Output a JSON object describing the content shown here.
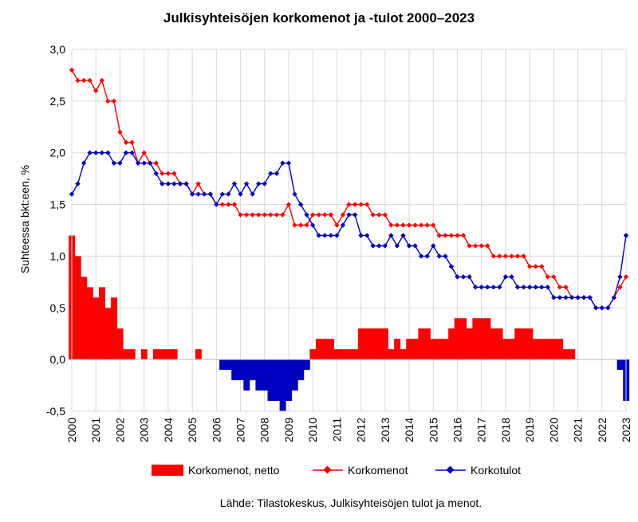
{
  "chart_data": {
    "type": "bar+line",
    "title": "Julkisyhteisöjen korkomenot ja -tulot 2000–2023",
    "ylabel": "Suhteessa bkt:een, %",
    "xlabel": "",
    "ylim": [
      -0.5,
      3.0
    ],
    "xlim": [
      2000,
      2023
    ],
    "y_ticks": [
      "3,0",
      "2,5",
      "2,0",
      "1,5",
      "1,0",
      "0,5",
      "0,0",
      "-0,5"
    ],
    "y_tick_values": [
      3.0,
      2.5,
      2.0,
      1.5,
      1.0,
      0.5,
      0.0,
      -0.5
    ],
    "x_ticks": [
      "2000",
      "2001",
      "2002",
      "2003",
      "2004",
      "2005",
      "2006",
      "2007",
      "2008",
      "2009",
      "2010",
      "2011",
      "2012",
      "2013",
      "2014",
      "2015",
      "2016",
      "2017",
      "2018",
      "2019",
      "2020",
      "2021",
      "2022",
      "2023"
    ],
    "x_tick_values": [
      2000,
      2001,
      2002,
      2003,
      2004,
      2005,
      2006,
      2007,
      2008,
      2009,
      2010,
      2011,
      2012,
      2013,
      2014,
      2015,
      2016,
      2017,
      2018,
      2019,
      2020,
      2021,
      2022,
      2023
    ],
    "grid": true,
    "legend_position": "bottom",
    "x_step": 0.25,
    "series": [
      {
        "name": "Korkomenot, netto",
        "type": "bar",
        "color": "#ff0000",
        "values": [
          [
            2000.0,
            1.2
          ],
          [
            2000.25,
            1.0
          ],
          [
            2000.5,
            0.8
          ],
          [
            2000.75,
            0.7
          ],
          [
            2001.0,
            0.6
          ],
          [
            2001.25,
            0.7
          ],
          [
            2001.5,
            0.5
          ],
          [
            2001.75,
            0.6
          ],
          [
            2002.0,
            0.3
          ],
          [
            2002.25,
            0.1
          ],
          [
            2002.5,
            0.1
          ],
          [
            2002.75,
            0.0
          ],
          [
            2003.0,
            0.1
          ],
          [
            2003.25,
            0.0
          ],
          [
            2003.5,
            0.1
          ],
          [
            2003.75,
            0.1
          ],
          [
            2004.0,
            0.1
          ],
          [
            2004.25,
            0.1
          ],
          [
            2004.5,
            0.0
          ],
          [
            2004.75,
            0.0
          ],
          [
            2005.0,
            0.0
          ],
          [
            2005.25,
            0.1
          ],
          [
            2005.5,
            0.0
          ],
          [
            2005.75,
            0.0
          ],
          [
            2006.0,
            0.0
          ],
          [
            2006.25,
            -0.1
          ],
          [
            2006.5,
            -0.1
          ],
          [
            2006.75,
            -0.2
          ],
          [
            2007.0,
            -0.2
          ],
          [
            2007.25,
            -0.3
          ],
          [
            2007.5,
            -0.2
          ],
          [
            2007.75,
            -0.3
          ],
          [
            2008.0,
            -0.3
          ],
          [
            2008.25,
            -0.4
          ],
          [
            2008.5,
            -0.4
          ],
          [
            2008.75,
            -0.5
          ],
          [
            2009.0,
            -0.4
          ],
          [
            2009.25,
            -0.3
          ],
          [
            2009.5,
            -0.2
          ],
          [
            2009.75,
            -0.1
          ],
          [
            2010.0,
            0.1
          ],
          [
            2010.25,
            0.2
          ],
          [
            2010.5,
            0.2
          ],
          [
            2010.75,
            0.2
          ],
          [
            2011.0,
            0.1
          ],
          [
            2011.25,
            0.1
          ],
          [
            2011.5,
            0.1
          ],
          [
            2011.75,
            0.1
          ],
          [
            2012.0,
            0.3
          ],
          [
            2012.25,
            0.3
          ],
          [
            2012.5,
            0.3
          ],
          [
            2012.75,
            0.3
          ],
          [
            2013.0,
            0.3
          ],
          [
            2013.25,
            0.1
          ],
          [
            2013.5,
            0.2
          ],
          [
            2013.75,
            0.1
          ],
          [
            2014.0,
            0.2
          ],
          [
            2014.25,
            0.2
          ],
          [
            2014.5,
            0.3
          ],
          [
            2014.75,
            0.3
          ],
          [
            2015.0,
            0.2
          ],
          [
            2015.25,
            0.2
          ],
          [
            2015.5,
            0.2
          ],
          [
            2015.75,
            0.3
          ],
          [
            2016.0,
            0.4
          ],
          [
            2016.25,
            0.4
          ],
          [
            2016.5,
            0.3
          ],
          [
            2016.75,
            0.4
          ],
          [
            2017.0,
            0.4
          ],
          [
            2017.25,
            0.4
          ],
          [
            2017.5,
            0.3
          ],
          [
            2017.75,
            0.3
          ],
          [
            2018.0,
            0.2
          ],
          [
            2018.25,
            0.2
          ],
          [
            2018.5,
            0.3
          ],
          [
            2018.75,
            0.3
          ],
          [
            2019.0,
            0.3
          ],
          [
            2019.25,
            0.2
          ],
          [
            2019.5,
            0.2
          ],
          [
            2019.75,
            0.2
          ],
          [
            2020.0,
            0.2
          ],
          [
            2020.25,
            0.2
          ],
          [
            2020.5,
            0.1
          ],
          [
            2020.75,
            0.1
          ],
          [
            2021.0,
            0.0
          ],
          [
            2021.25,
            0.0
          ],
          [
            2021.5,
            0.0
          ],
          [
            2021.75,
            0.0
          ],
          [
            2022.0,
            0.0
          ],
          [
            2022.25,
            0.0
          ],
          [
            2022.5,
            0.0
          ],
          [
            2022.75,
            -0.1
          ],
          [
            2023.0,
            -0.4
          ]
        ]
      },
      {
        "name": "Korkomenot",
        "type": "line",
        "color": "#ff0000",
        "values": [
          [
            2000.0,
            2.8
          ],
          [
            2000.25,
            2.7
          ],
          [
            2000.5,
            2.7
          ],
          [
            2000.75,
            2.7
          ],
          [
            2001.0,
            2.6
          ],
          [
            2001.25,
            2.7
          ],
          [
            2001.5,
            2.5
          ],
          [
            2001.75,
            2.5
          ],
          [
            2002.0,
            2.2
          ],
          [
            2002.25,
            2.1
          ],
          [
            2002.5,
            2.1
          ],
          [
            2002.75,
            1.9
          ],
          [
            2003.0,
            2.0
          ],
          [
            2003.25,
            1.9
          ],
          [
            2003.5,
            1.9
          ],
          [
            2003.75,
            1.8
          ],
          [
            2004.0,
            1.8
          ],
          [
            2004.25,
            1.8
          ],
          [
            2004.5,
            1.7
          ],
          [
            2004.75,
            1.7
          ],
          [
            2005.0,
            1.6
          ],
          [
            2005.25,
            1.7
          ],
          [
            2005.5,
            1.6
          ],
          [
            2005.75,
            1.6
          ],
          [
            2006.0,
            1.5
          ],
          [
            2006.25,
            1.5
          ],
          [
            2006.5,
            1.5
          ],
          [
            2006.75,
            1.5
          ],
          [
            2007.0,
            1.4
          ],
          [
            2007.25,
            1.4
          ],
          [
            2007.5,
            1.4
          ],
          [
            2007.75,
            1.4
          ],
          [
            2008.0,
            1.4
          ],
          [
            2008.25,
            1.4
          ],
          [
            2008.5,
            1.4
          ],
          [
            2008.75,
            1.4
          ],
          [
            2009.0,
            1.5
          ],
          [
            2009.25,
            1.3
          ],
          [
            2009.5,
            1.3
          ],
          [
            2009.75,
            1.3
          ],
          [
            2010.0,
            1.4
          ],
          [
            2010.25,
            1.4
          ],
          [
            2010.5,
            1.4
          ],
          [
            2010.75,
            1.4
          ],
          [
            2011.0,
            1.3
          ],
          [
            2011.25,
            1.4
          ],
          [
            2011.5,
            1.5
          ],
          [
            2011.75,
            1.5
          ],
          [
            2012.0,
            1.5
          ],
          [
            2012.25,
            1.5
          ],
          [
            2012.5,
            1.4
          ],
          [
            2012.75,
            1.4
          ],
          [
            2013.0,
            1.4
          ],
          [
            2013.25,
            1.3
          ],
          [
            2013.5,
            1.3
          ],
          [
            2013.75,
            1.3
          ],
          [
            2014.0,
            1.3
          ],
          [
            2014.25,
            1.3
          ],
          [
            2014.5,
            1.3
          ],
          [
            2014.75,
            1.3
          ],
          [
            2015.0,
            1.3
          ],
          [
            2015.25,
            1.2
          ],
          [
            2015.5,
            1.2
          ],
          [
            2015.75,
            1.2
          ],
          [
            2016.0,
            1.2
          ],
          [
            2016.25,
            1.2
          ],
          [
            2016.5,
            1.1
          ],
          [
            2016.75,
            1.1
          ],
          [
            2017.0,
            1.1
          ],
          [
            2017.25,
            1.1
          ],
          [
            2017.5,
            1.0
          ],
          [
            2017.75,
            1.0
          ],
          [
            2018.0,
            1.0
          ],
          [
            2018.25,
            1.0
          ],
          [
            2018.5,
            1.0
          ],
          [
            2018.75,
            1.0
          ],
          [
            2019.0,
            0.9
          ],
          [
            2019.25,
            0.9
          ],
          [
            2019.5,
            0.9
          ],
          [
            2019.75,
            0.8
          ],
          [
            2020.0,
            0.8
          ],
          [
            2020.25,
            0.7
          ],
          [
            2020.5,
            0.7
          ],
          [
            2020.75,
            0.6
          ],
          [
            2021.0,
            0.6
          ],
          [
            2021.25,
            0.6
          ],
          [
            2021.5,
            0.6
          ],
          [
            2021.75,
            0.5
          ],
          [
            2022.0,
            0.5
          ],
          [
            2022.25,
            0.5
          ],
          [
            2022.5,
            0.6
          ],
          [
            2022.75,
            0.7
          ],
          [
            2023.0,
            0.8
          ]
        ]
      },
      {
        "name": "Korkotulot",
        "type": "line",
        "color": "#0000c0",
        "values": [
          [
            2000.0,
            1.6
          ],
          [
            2000.25,
            1.7
          ],
          [
            2000.5,
            1.9
          ],
          [
            2000.75,
            2.0
          ],
          [
            2001.0,
            2.0
          ],
          [
            2001.25,
            2.0
          ],
          [
            2001.5,
            2.0
          ],
          [
            2001.75,
            1.9
          ],
          [
            2002.0,
            1.9
          ],
          [
            2002.25,
            2.0
          ],
          [
            2002.5,
            2.0
          ],
          [
            2002.75,
            1.9
          ],
          [
            2003.0,
            1.9
          ],
          [
            2003.25,
            1.9
          ],
          [
            2003.5,
            1.8
          ],
          [
            2003.75,
            1.7
          ],
          [
            2004.0,
            1.7
          ],
          [
            2004.25,
            1.7
          ],
          [
            2004.5,
            1.7
          ],
          [
            2004.75,
            1.7
          ],
          [
            2005.0,
            1.6
          ],
          [
            2005.25,
            1.6
          ],
          [
            2005.5,
            1.6
          ],
          [
            2005.75,
            1.6
          ],
          [
            2006.0,
            1.5
          ],
          [
            2006.25,
            1.6
          ],
          [
            2006.5,
            1.6
          ],
          [
            2006.75,
            1.7
          ],
          [
            2007.0,
            1.6
          ],
          [
            2007.25,
            1.7
          ],
          [
            2007.5,
            1.6
          ],
          [
            2007.75,
            1.7
          ],
          [
            2008.0,
            1.7
          ],
          [
            2008.25,
            1.8
          ],
          [
            2008.5,
            1.8
          ],
          [
            2008.75,
            1.9
          ],
          [
            2009.0,
            1.9
          ],
          [
            2009.25,
            1.6
          ],
          [
            2009.5,
            1.5
          ],
          [
            2009.75,
            1.4
          ],
          [
            2010.0,
            1.3
          ],
          [
            2010.25,
            1.2
          ],
          [
            2010.5,
            1.2
          ],
          [
            2010.75,
            1.2
          ],
          [
            2011.0,
            1.2
          ],
          [
            2011.25,
            1.3
          ],
          [
            2011.5,
            1.4
          ],
          [
            2011.75,
            1.4
          ],
          [
            2012.0,
            1.2
          ],
          [
            2012.25,
            1.2
          ],
          [
            2012.5,
            1.1
          ],
          [
            2012.75,
            1.1
          ],
          [
            2013.0,
            1.1
          ],
          [
            2013.25,
            1.2
          ],
          [
            2013.5,
            1.1
          ],
          [
            2013.75,
            1.2
          ],
          [
            2014.0,
            1.1
          ],
          [
            2014.25,
            1.1
          ],
          [
            2014.5,
            1.0
          ],
          [
            2014.75,
            1.0
          ],
          [
            2015.0,
            1.1
          ],
          [
            2015.25,
            1.0
          ],
          [
            2015.5,
            1.0
          ],
          [
            2015.75,
            0.9
          ],
          [
            2016.0,
            0.8
          ],
          [
            2016.25,
            0.8
          ],
          [
            2016.5,
            0.8
          ],
          [
            2016.75,
            0.7
          ],
          [
            2017.0,
            0.7
          ],
          [
            2017.25,
            0.7
          ],
          [
            2017.5,
            0.7
          ],
          [
            2017.75,
            0.7
          ],
          [
            2018.0,
            0.8
          ],
          [
            2018.25,
            0.8
          ],
          [
            2018.5,
            0.7
          ],
          [
            2018.75,
            0.7
          ],
          [
            2019.0,
            0.7
          ],
          [
            2019.25,
            0.7
          ],
          [
            2019.5,
            0.7
          ],
          [
            2019.75,
            0.7
          ],
          [
            2020.0,
            0.6
          ],
          [
            2020.25,
            0.6
          ],
          [
            2020.5,
            0.6
          ],
          [
            2020.75,
            0.6
          ],
          [
            2021.0,
            0.6
          ],
          [
            2021.25,
            0.6
          ],
          [
            2021.5,
            0.6
          ],
          [
            2021.75,
            0.5
          ],
          [
            2022.0,
            0.5
          ],
          [
            2022.25,
            0.5
          ],
          [
            2022.5,
            0.6
          ],
          [
            2022.75,
            0.8
          ],
          [
            2023.0,
            1.2
          ]
        ]
      }
    ],
    "legend": {
      "bar_label": "Korkomenot, netto",
      "expenses_label": "Korkomenot",
      "income_label": "Korkotulot"
    },
    "source": "Lähde: Tilastokeskus, Julkisyhteisöjen tulot ja menot."
  }
}
